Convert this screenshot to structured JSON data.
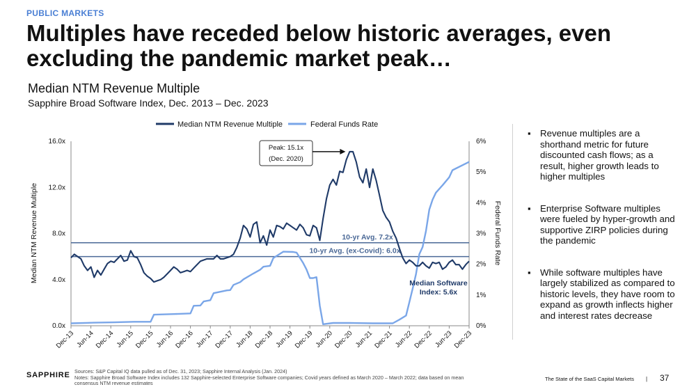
{
  "header": {
    "eyebrow": "PUBLIC MARKETS",
    "title": "Multiples have receded below historic averages, even excluding the pandemic market peak…"
  },
  "chart_header": {
    "title": "Median NTM Revenue Multiple",
    "subtitle": "Sapphire Broad Software Index, Dec. 2013 – Dec. 2023"
  },
  "bullets": [
    "Revenue multiples are a shorthand metric for future discounted cash flows; as a result, higher growth leads to higher multiples",
    "Enterprise Software multiples were fueled by hyper-growth and supportive ZIRP policies during the pandemic",
    "While software multiples have largely stabilized as compared to historic levels, they have room to expand as growth inflects higher and interest rates decrease"
  ],
  "footer": {
    "logo": "SAPPHIRE",
    "sources": "Sources: S&P Capital IQ data pulled as of Dec. 31, 2023; Sapphire Internal Analysis (Jan. 2024)",
    "notes": "Notes: Sapphire Broad Software Index includes 132 Sapphire-selected Enterprise Software companies; Covid years defined as March 2020 – March 2022; data based on mean consensus NTM revenue estimates",
    "right_text": "The State of the SaaS Capital Markets",
    "separator": "|",
    "page": "37"
  },
  "chart_data": {
    "type": "line",
    "title": "Median NTM Revenue Multiple",
    "subtitle": "Sapphire Broad Software Index, Dec. 2013 – Dec. 2023",
    "ylabel": "Median NTM Revenue Multiple",
    "ylabel_right": "Federal Funds Rate",
    "ylim": [
      0,
      16
    ],
    "ylim_right": [
      0,
      6
    ],
    "yticks": [
      0,
      4,
      8,
      12,
      16
    ],
    "ytick_labels": [
      "0.0x",
      "4.0x",
      "8.0x",
      "12.0x",
      "16.0x"
    ],
    "yticks_right": [
      0,
      1,
      2,
      3,
      4,
      5,
      6
    ],
    "ytick_labels_right": [
      "0%",
      "1%",
      "2%",
      "3%",
      "4%",
      "5%",
      "6%"
    ],
    "x_range": [
      2013.917,
      2023.917
    ],
    "xtick_labels": [
      "Dec-13",
      "Jun-14",
      "Dec-14",
      "Jun-15",
      "Dec-15",
      "Jun-16",
      "Dec-16",
      "Jun-17",
      "Dec-17",
      "Jun-18",
      "Dec-18",
      "Jun-19",
      "Dec-19",
      "Jun-20",
      "Dec-20",
      "Jun-21",
      "Dec-21",
      "Jun-22",
      "Dec-22",
      "Jun-23",
      "Dec-23"
    ],
    "legend": {
      "position": "top-center",
      "entries": [
        "Median NTM Revenue Multiple",
        "Federal Funds Rate"
      ]
    },
    "colors": {
      "multiple": "#1f3a68",
      "rate": "#7aa6e8",
      "avg": "#4a6896",
      "annotation": "#1f3a68"
    },
    "reference_lines": [
      {
        "label": "10-yr Avg. 7.2x",
        "value": 7.2
      },
      {
        "label": "10-yr Avg. (ex-Covid): 6.0x",
        "value": 6.0
      }
    ],
    "annotations": {
      "peak_line1": "Peak: 15.1x",
      "peak_line2": "(Dec. 2020)",
      "peak_value": 15.1,
      "peak_x": 2020.917,
      "end_line1": "Median Software",
      "end_line2": "Index: 5.6x",
      "end_value": 5.6
    },
    "series": [
      {
        "name": "Median NTM Revenue Multiple",
        "x": [
          2013.917,
          2014.0,
          2014.083,
          2014.167,
          2014.25,
          2014.333,
          2014.417,
          2014.5,
          2014.583,
          2014.667,
          2014.75,
          2014.833,
          2014.917,
          2015.0,
          2015.083,
          2015.167,
          2015.25,
          2015.333,
          2015.417,
          2015.5,
          2015.583,
          2015.667,
          2015.75,
          2015.833,
          2015.917,
          2016.0,
          2016.083,
          2016.167,
          2016.25,
          2016.333,
          2016.417,
          2016.5,
          2016.583,
          2016.667,
          2016.75,
          2016.833,
          2016.917,
          2017.0,
          2017.167,
          2017.333,
          2017.5,
          2017.583,
          2017.667,
          2017.75,
          2017.833,
          2017.917,
          2018.0,
          2018.083,
          2018.167,
          2018.25,
          2018.333,
          2018.417,
          2018.5,
          2018.583,
          2018.667,
          2018.75,
          2018.833,
          2018.917,
          2019.0,
          2019.083,
          2019.167,
          2019.25,
          2019.333,
          2019.417,
          2019.5,
          2019.583,
          2019.667,
          2019.75,
          2019.833,
          2019.917,
          2020.0,
          2020.083,
          2020.167,
          2020.25,
          2020.333,
          2020.417,
          2020.5,
          2020.583,
          2020.667,
          2020.75,
          2020.833,
          2020.917,
          2021.0,
          2021.083,
          2021.167,
          2021.25,
          2021.333,
          2021.417,
          2021.5,
          2021.583,
          2021.667,
          2021.75,
          2021.833,
          2021.917,
          2022.0,
          2022.083,
          2022.167,
          2022.25,
          2022.333,
          2022.417,
          2022.5,
          2022.583,
          2022.667,
          2022.75,
          2022.833,
          2022.917,
          2023.0,
          2023.083,
          2023.167,
          2023.25,
          2023.333,
          2023.417,
          2023.5,
          2023.583,
          2023.667,
          2023.75,
          2023.833,
          2023.917
        ],
        "values": [
          5.9,
          6.2,
          6.0,
          5.8,
          5.2,
          4.8,
          5.1,
          4.2,
          4.8,
          4.4,
          4.9,
          5.4,
          5.6,
          5.5,
          5.8,
          6.1,
          5.6,
          5.7,
          6.5,
          6.0,
          5.9,
          5.3,
          4.6,
          4.3,
          4.1,
          3.8,
          3.9,
          4.0,
          4.2,
          4.5,
          4.8,
          5.1,
          4.9,
          4.6,
          4.7,
          4.8,
          4.7,
          5.0,
          5.6,
          5.8,
          5.8,
          6.1,
          5.8,
          5.8,
          5.9,
          6.0,
          6.2,
          6.8,
          7.6,
          8.7,
          8.4,
          7.7,
          8.8,
          9.0,
          7.2,
          7.8,
          7.0,
          8.3,
          7.7,
          8.7,
          8.6,
          8.4,
          8.9,
          8.7,
          8.5,
          8.3,
          8.8,
          8.5,
          7.9,
          7.8,
          8.7,
          8.5,
          7.4,
          9.3,
          11.0,
          12.2,
          12.7,
          12.2,
          13.4,
          13.3,
          14.4,
          15.1,
          15.1,
          14.2,
          12.9,
          12.4,
          13.6,
          12.0,
          13.6,
          12.6,
          11.3,
          10.0,
          9.4,
          9.0,
          8.2,
          7.6,
          6.7,
          5.9,
          5.4,
          5.7,
          5.5,
          5.2,
          5.2,
          5.5,
          5.2,
          5.0,
          5.5,
          5.4,
          5.5,
          4.9,
          5.1,
          5.5,
          5.7,
          5.3,
          5.3,
          4.9,
          5.3,
          5.6
        ]
      },
      {
        "name": "Federal Funds Rate",
        "x": [
          2013.917,
          2014.5,
          2015.0,
          2015.5,
          2015.917,
          2016.0,
          2016.5,
          2016.917,
          2017.0,
          2017.167,
          2017.25,
          2017.417,
          2017.5,
          2017.833,
          2017.917,
          2018.0,
          2018.167,
          2018.25,
          2018.5,
          2018.667,
          2018.75,
          2018.917,
          2019.0,
          2019.25,
          2019.5,
          2019.583,
          2019.75,
          2019.833,
          2019.917,
          2020.0,
          2020.083,
          2020.167,
          2020.25,
          2020.5,
          2020.917,
          2021.5,
          2021.917,
          2022.0,
          2022.167,
          2022.333,
          2022.417,
          2022.5,
          2022.583,
          2022.667,
          2022.75,
          2022.833,
          2022.917,
          2023.0,
          2023.083,
          2023.25,
          2023.417,
          2023.5,
          2023.917
        ],
        "values": [
          0.08,
          0.1,
          0.11,
          0.13,
          0.13,
          0.36,
          0.38,
          0.4,
          0.65,
          0.66,
          0.79,
          0.83,
          1.06,
          1.15,
          1.16,
          1.33,
          1.42,
          1.51,
          1.7,
          1.82,
          1.92,
          1.95,
          2.2,
          2.41,
          2.4,
          2.38,
          2.04,
          1.83,
          1.55,
          1.55,
          1.58,
          0.65,
          0.05,
          0.09,
          0.09,
          0.08,
          0.08,
          0.08,
          0.2,
          0.33,
          0.77,
          1.21,
          1.68,
          2.33,
          2.56,
          3.08,
          3.78,
          4.1,
          4.33,
          4.57,
          4.83,
          5.06,
          5.33
        ]
      }
    ]
  }
}
